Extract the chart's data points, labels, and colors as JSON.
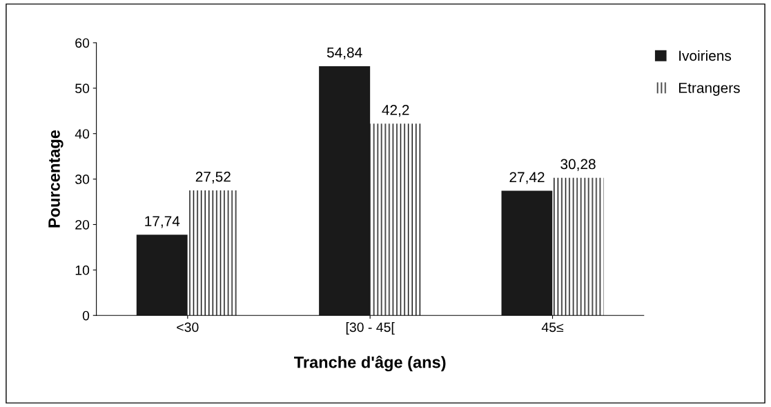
{
  "chart_data": {
    "type": "bar",
    "xlabel": "Tranche d'âge (ans)",
    "ylabel": "Pourcentage",
    "categories": [
      "<30",
      "[30 - 45[",
      "45≤"
    ],
    "series": [
      {
        "name": "Ivoiriens",
        "color": "#1a1a1a",
        "values": [
          17.74,
          54.84,
          27.42
        ],
        "value_labels": [
          "17,74",
          "54,84",
          "27,42"
        ]
      },
      {
        "name": "Etrangers",
        "color": "#ffffff",
        "values": [
          27.52,
          42.2,
          30.28
        ],
        "value_labels": [
          "27,52",
          "42,2",
          "30,28"
        ]
      }
    ],
    "ylim": [
      0,
      60
    ],
    "yticks": [
      0,
      10,
      20,
      30,
      40,
      50,
      60
    ],
    "grid": false,
    "legend": "top right"
  }
}
